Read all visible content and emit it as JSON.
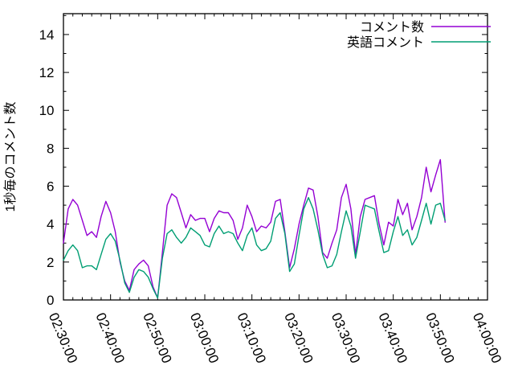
{
  "chart_data": {
    "type": "line",
    "title": "",
    "xlabel": "",
    "ylabel": "1秒毎のコメント数",
    "grid": false,
    "legend_position": "top-right-inside",
    "background_color": "#ffffff",
    "axis_color": "#000000",
    "x_axis": {
      "kind": "time",
      "tick_labels": [
        "02:30:00",
        "02:40:00",
        "02:50:00",
        "03:00:00",
        "03:10:00",
        "03:20:00",
        "03:30:00",
        "03:40:00",
        "03:50:00",
        "04:00:00"
      ],
      "range_minutes": [
        0,
        90
      ],
      "major_step_minutes": 10,
      "minor_step_minutes": 2,
      "label_rotation_deg": 67
    },
    "y_axis": {
      "tick_labels": [
        "0",
        "2",
        "4",
        "6",
        "8",
        "10",
        "12",
        "14"
      ],
      "tick_values": [
        0,
        2,
        4,
        6,
        8,
        10,
        12,
        14
      ],
      "minor_step": 1,
      "range": [
        0,
        15.1
      ]
    },
    "series": [
      {
        "name": "コメント数",
        "color": "#9400d3",
        "x_start_minutes": 0,
        "x_step_minutes": 1,
        "values": [
          3.0,
          4.8,
          5.3,
          5.0,
          4.2,
          3.4,
          3.6,
          3.3,
          4.4,
          5.2,
          4.6,
          3.6,
          2.0,
          1.0,
          0.5,
          1.6,
          1.9,
          2.1,
          1.8,
          0.7,
          0.1,
          2.5,
          5.0,
          5.6,
          5.4,
          4.6,
          3.8,
          4.5,
          4.2,
          4.3,
          4.3,
          3.6,
          4.3,
          4.7,
          4.6,
          4.6,
          4.2,
          3.2,
          3.8,
          5.0,
          4.4,
          3.6,
          3.9,
          3.8,
          4.1,
          5.2,
          5.3,
          3.6,
          1.7,
          2.7,
          4.0,
          5.0,
          5.9,
          5.8,
          4.4,
          2.5,
          2.2,
          3.0,
          3.7,
          5.4,
          6.1,
          4.8,
          2.4,
          4.4,
          5.3,
          5.4,
          5.5,
          4.0,
          2.9,
          4.1,
          3.9,
          5.3,
          4.5,
          5.1,
          3.7,
          4.4,
          5.4,
          7.0,
          5.7,
          6.6,
          7.4,
          4.1
        ]
      },
      {
        "name": "英語コメント",
        "color": "#009e73",
        "x_start_minutes": 0,
        "x_step_minutes": 1,
        "values": [
          2.1,
          2.6,
          2.9,
          2.6,
          1.7,
          1.8,
          1.8,
          1.6,
          2.4,
          3.2,
          3.5,
          3.1,
          2.1,
          0.9,
          0.4,
          1.2,
          1.6,
          1.5,
          1.2,
          0.6,
          0.1,
          2.2,
          3.5,
          3.7,
          3.3,
          3.0,
          3.3,
          3.8,
          3.6,
          3.4,
          2.9,
          2.8,
          3.5,
          3.9,
          3.5,
          3.6,
          3.5,
          3.0,
          2.6,
          3.4,
          3.8,
          2.9,
          2.6,
          2.7,
          3.1,
          4.3,
          4.6,
          3.5,
          1.5,
          1.9,
          3.4,
          4.8,
          5.4,
          4.8,
          3.7,
          2.4,
          1.7,
          1.8,
          2.4,
          3.6,
          4.7,
          3.9,
          2.2,
          3.6,
          5.0,
          4.9,
          4.8,
          3.6,
          2.5,
          2.6,
          3.6,
          4.4,
          3.4,
          3.7,
          2.9,
          3.3,
          4.2,
          5.1,
          4.0,
          5.0,
          5.1,
          4.2
        ]
      }
    ]
  }
}
